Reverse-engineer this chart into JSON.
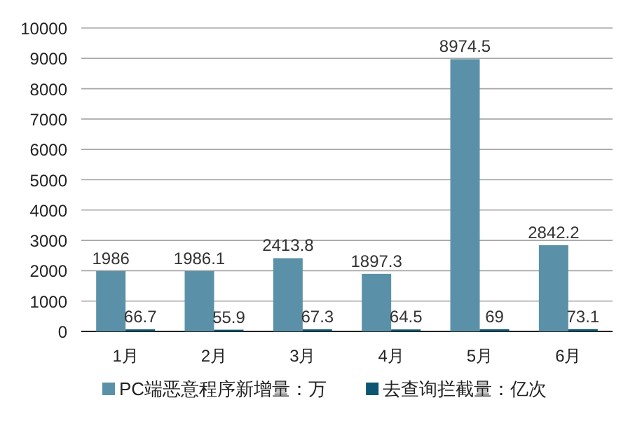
{
  "chart_data": {
    "type": "bar",
    "categories": [
      "1月",
      "2月",
      "3月",
      "4月",
      "5月",
      "6月"
    ],
    "series": [
      {
        "name": "PC端恶意程序新增量：万",
        "color": "#5b91a8",
        "values": [
          1986,
          1986.1,
          2413.8,
          1897.3,
          8974.5,
          2842.2
        ]
      },
      {
        "name": "去查询拦截量：亿次",
        "color": "#0d5570",
        "values": [
          66.7,
          55.9,
          67.3,
          64.5,
          69,
          73.1
        ]
      }
    ],
    "ylim": [
      0,
      10000
    ],
    "yticks": [
      0,
      1000,
      2000,
      3000,
      4000,
      5000,
      6000,
      7000,
      8000,
      9000,
      10000
    ],
    "grid": "y",
    "legend": "bottom",
    "data_labels": true
  }
}
